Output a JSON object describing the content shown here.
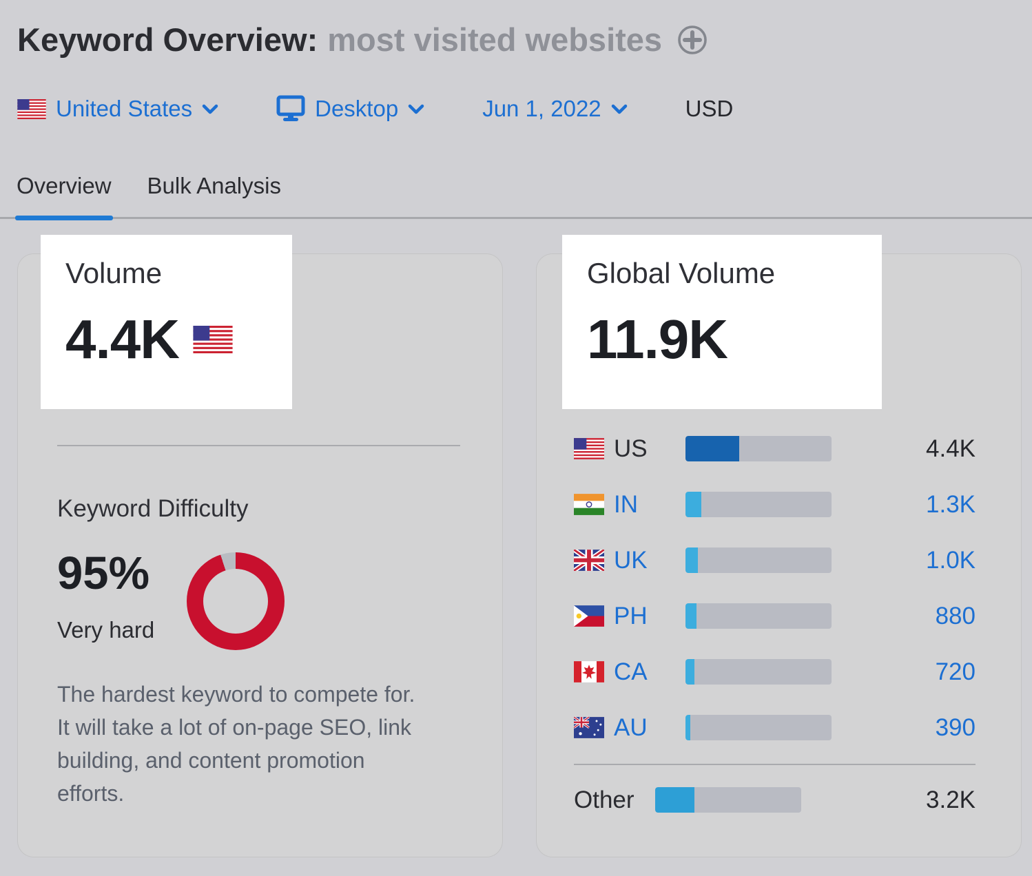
{
  "header": {
    "title_prefix": "Keyword Overview:",
    "title_keyword": "most visited websites",
    "add_icon": "plus-circle-icon"
  },
  "filters": {
    "country": "United States",
    "device": "Desktop",
    "date": "Jun 1, 2022",
    "currency": "USD"
  },
  "tabs": [
    {
      "label": "Overview",
      "active": true
    },
    {
      "label": "Bulk Analysis",
      "active": false
    }
  ],
  "volume_card": {
    "title": "Volume",
    "value": "4.4K",
    "flag": "us-flag",
    "kd_title": "Keyword Difficulty",
    "kd_percent": 95,
    "kd_value": "95%",
    "kd_label": "Very hard",
    "kd_description": "The hardest keyword to compete for. It will take a lot of on-page SEO, link building, and content promotion efforts."
  },
  "global_card": {
    "title": "Global Volume",
    "value": "11.9K",
    "total_numeric": 11900,
    "countries": [
      {
        "code": "US",
        "value": "4.4K",
        "numeric": 4400,
        "highlight": true
      },
      {
        "code": "IN",
        "value": "1.3K",
        "numeric": 1300,
        "highlight": false
      },
      {
        "code": "UK",
        "value": "1.0K",
        "numeric": 1000,
        "highlight": false
      },
      {
        "code": "PH",
        "value": "880",
        "numeric": 880,
        "highlight": false
      },
      {
        "code": "CA",
        "value": "720",
        "numeric": 720,
        "highlight": false
      },
      {
        "code": "AU",
        "value": "390",
        "numeric": 390,
        "highlight": false
      }
    ],
    "other": {
      "label": "Other",
      "value": "3.2K",
      "numeric": 3200
    }
  },
  "colors": {
    "accent_blue": "#1c6fd2",
    "bar_highlight": "#1763ae",
    "bar_normal": "#3cadde",
    "bar_other": "#2d9fd6",
    "bar_track": "#b9bbc3",
    "kd_red": "#c8102e",
    "donut_rest": "#b9bcc2"
  }
}
